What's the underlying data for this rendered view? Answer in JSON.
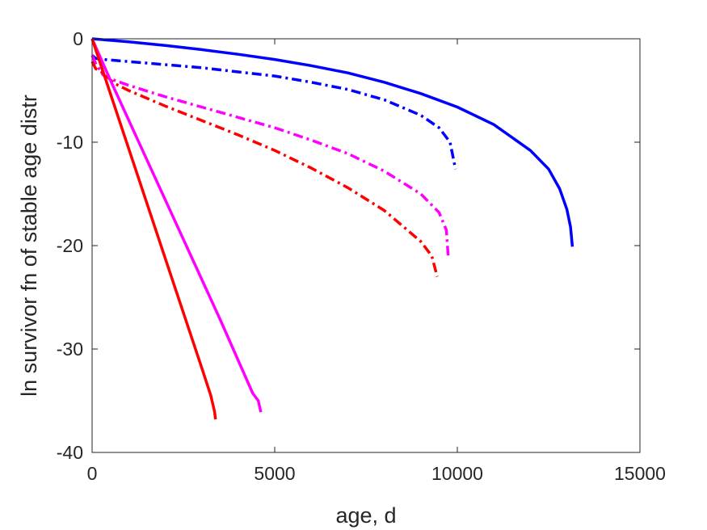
{
  "chart_data": {
    "type": "line",
    "title": "",
    "xlabel": "age, d",
    "ylabel": "ln survivor fn of stable age distr",
    "xlim": [
      0,
      15000
    ],
    "ylim": [
      -40,
      0
    ],
    "xticks": [
      0,
      5000,
      10000,
      15000
    ],
    "yticks": [
      0,
      -10,
      -20,
      -30,
      -40
    ],
    "xtick_labels": [
      "0",
      "5000",
      "10000",
      "15000"
    ],
    "ytick_labels": [
      "0",
      "-10",
      "-20",
      "-30",
      "-40"
    ],
    "grid": false,
    "series": [
      {
        "color": "#0000ff",
        "style": "solid",
        "points": [
          [
            0,
            0
          ],
          [
            500,
            -0.15
          ],
          [
            1000,
            -0.3
          ],
          [
            2000,
            -0.65
          ],
          [
            3000,
            -1.05
          ],
          [
            4000,
            -1.5
          ],
          [
            5000,
            -2.0
          ],
          [
            6000,
            -2.6
          ],
          [
            7000,
            -3.3
          ],
          [
            8000,
            -4.2
          ],
          [
            9000,
            -5.3
          ],
          [
            10000,
            -6.6
          ],
          [
            11000,
            -8.3
          ],
          [
            12000,
            -10.8
          ],
          [
            12500,
            -12.6
          ],
          [
            12800,
            -14.5
          ],
          [
            13000,
            -16.5
          ],
          [
            13100,
            -18.2
          ],
          [
            13150,
            -20.1
          ]
        ]
      },
      {
        "color": "#0000ff",
        "style": "dashdot",
        "points": [
          [
            0,
            -1.6
          ],
          [
            100,
            -1.9
          ],
          [
            300,
            -2.0
          ],
          [
            1000,
            -2.2
          ],
          [
            2000,
            -2.5
          ],
          [
            3000,
            -2.8
          ],
          [
            4000,
            -3.2
          ],
          [
            5000,
            -3.6
          ],
          [
            6000,
            -4.2
          ],
          [
            7000,
            -4.9
          ],
          [
            8000,
            -5.9
          ],
          [
            9000,
            -7.4
          ],
          [
            9500,
            -8.6
          ],
          [
            9800,
            -10.0
          ],
          [
            9950,
            -12.6
          ]
        ]
      },
      {
        "color": "#ff00ff",
        "style": "dashdot",
        "points": [
          [
            0,
            -1.6
          ],
          [
            100,
            -2.4
          ],
          [
            300,
            -3.5
          ],
          [
            600,
            -4.0
          ],
          [
            1000,
            -4.5
          ],
          [
            2000,
            -5.6
          ],
          [
            3000,
            -6.6
          ],
          [
            4000,
            -7.6
          ],
          [
            5000,
            -8.6
          ],
          [
            6000,
            -9.8
          ],
          [
            7000,
            -11.1
          ],
          [
            8000,
            -12.8
          ],
          [
            9000,
            -15.0
          ],
          [
            9500,
            -16.8
          ],
          [
            9700,
            -18.5
          ],
          [
            9750,
            -21.0
          ]
        ]
      },
      {
        "color": "#ff0000",
        "style": "dashdot",
        "points": [
          [
            0,
            -2.2
          ],
          [
            100,
            -2.9
          ],
          [
            300,
            -3.3
          ],
          [
            600,
            -4.3
          ],
          [
            1000,
            -5.0
          ],
          [
            2000,
            -6.5
          ],
          [
            3000,
            -7.9
          ],
          [
            4000,
            -9.3
          ],
          [
            5000,
            -10.8
          ],
          [
            6000,
            -12.5
          ],
          [
            7000,
            -14.4
          ],
          [
            8000,
            -16.6
          ],
          [
            9000,
            -19.6
          ],
          [
            9300,
            -21.0
          ],
          [
            9450,
            -23.0
          ]
        ]
      },
      {
        "color": "#ff00ff",
        "style": "solid",
        "points": [
          [
            0,
            0
          ],
          [
            500,
            -4.0
          ],
          [
            1500,
            -11.7
          ],
          [
            2500,
            -19.4
          ],
          [
            3500,
            -27.1
          ],
          [
            4400,
            -34.3
          ],
          [
            4550,
            -35.0
          ],
          [
            4620,
            -36.1
          ]
        ]
      },
      {
        "color": "#ff0000",
        "style": "solid",
        "points": [
          [
            0,
            0
          ],
          [
            500,
            -5.3
          ],
          [
            1000,
            -10.6
          ],
          [
            2000,
            -21.2
          ],
          [
            3000,
            -31.8
          ],
          [
            3250,
            -34.5
          ],
          [
            3350,
            -36.0
          ],
          [
            3380,
            -36.8
          ]
        ]
      }
    ]
  }
}
